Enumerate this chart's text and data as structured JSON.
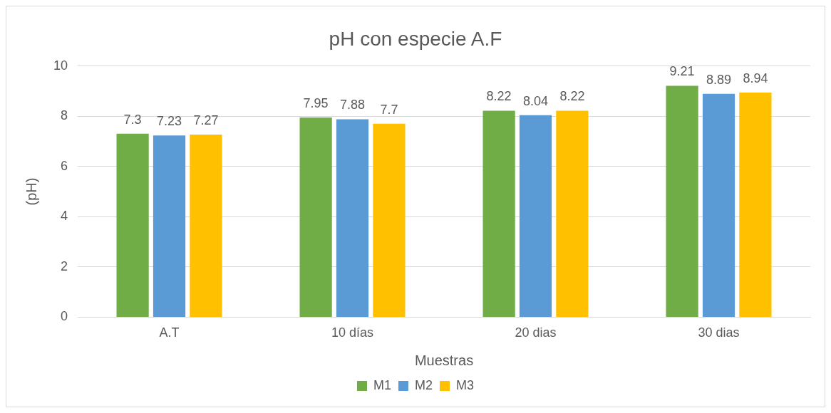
{
  "chart_data": {
    "type": "bar",
    "title": "pH con especie A.F",
    "xlabel": "Muestras",
    "ylabel": "(pH)",
    "categories": [
      "A.T",
      "10 días",
      "20 dias",
      "30 dias"
    ],
    "series": [
      {
        "name": "M1",
        "color": "#70ad47",
        "values": [
          7.3,
          7.95,
          8.22,
          9.21
        ]
      },
      {
        "name": "M2",
        "color": "#5b9bd5",
        "values": [
          7.23,
          7.88,
          8.04,
          8.89
        ]
      },
      {
        "name": "M3",
        "color": "#ffc000",
        "values": [
          7.27,
          7.7,
          8.22,
          8.94
        ]
      }
    ],
    "ylim": [
      0,
      10
    ],
    "yticks": [
      0,
      2,
      4,
      6,
      8,
      10
    ],
    "grid": "y",
    "legend": "bottom",
    "data_labels": true
  }
}
